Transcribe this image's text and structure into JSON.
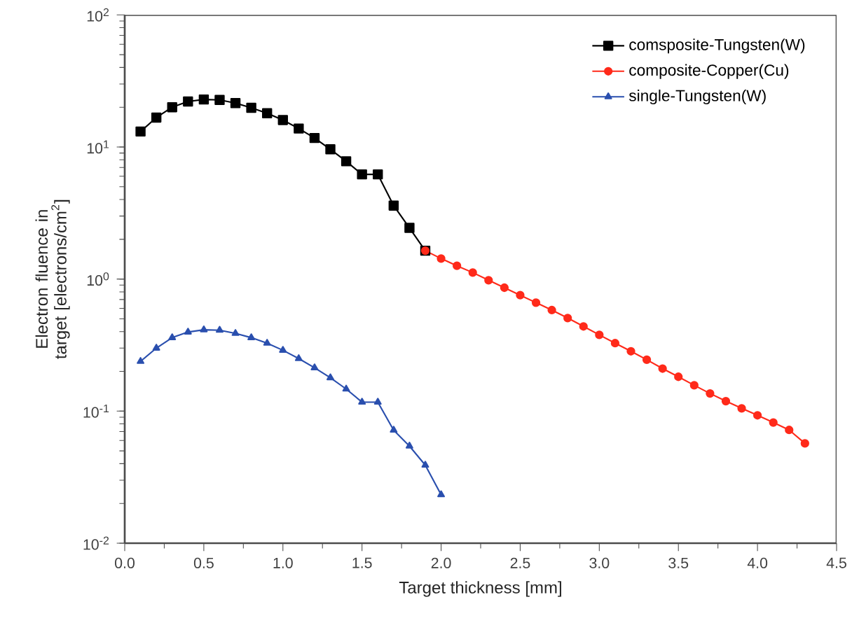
{
  "chart_data": {
    "type": "line",
    "xlabel": "Target thickness [mm]",
    "ylabel": "Electron fluence in target [electrons/cm$^{2}$]",
    "log": "y",
    "grid": false,
    "legend": "top right",
    "line_style": "solid",
    "xlim": [
      0,
      4.5
    ],
    "ylim": [
      0.01,
      100
    ],
    "xticks": [
      {
        "value": 0,
        "label": "0.0"
      },
      0.5,
      {
        "value": 1,
        "label": "1.0"
      },
      1.5,
      {
        "value": 2,
        "label": "2.0"
      },
      2.5,
      {
        "value": 3,
        "label": "3.0"
      },
      3.5,
      {
        "value": 4,
        "label": "4.0"
      },
      4.5
    ],
    "yticks": [
      {
        "value": 0.01,
        "label": "10$^{-2}$"
      },
      {
        "value": 0.1,
        "label": "10$^{-1}$"
      },
      {
        "value": 1,
        "label": "10$^{0}$"
      },
      {
        "value": 10,
        "label": "10$^{1}$"
      },
      {
        "value": 100,
        "label": "10$^{2}$"
      }
    ],
    "series": [
      {
        "name": "comsposite-Tungsten(W)",
        "color": "#000000",
        "marker": "square",
        "x": [
          0.1,
          0.2,
          0.3,
          0.4,
          0.5,
          0.6,
          0.7,
          0.8,
          0.9,
          1.0,
          1.1,
          1.2,
          1.3,
          1.4,
          1.5,
          1.6,
          1.7,
          1.8,
          1.9
        ],
        "values": [
          13.1,
          16.7,
          20,
          22.1,
          22.9,
          22.7,
          21.5,
          19.8,
          18,
          16,
          13.8,
          11.7,
          9.6,
          7.8,
          6.2,
          6.2,
          3.6,
          2.44,
          1.64
        ]
      },
      {
        "name": "composite-Copper(Cu)",
        "color": "#ff2a1a",
        "marker": "circle",
        "x": [
          1.9,
          2.0,
          2.1,
          2.2,
          2.3,
          2.4,
          2.5,
          2.6,
          2.7,
          2.8,
          2.9,
          3.0,
          3.1,
          3.2,
          3.3,
          3.4,
          3.5,
          3.6,
          3.7,
          3.8,
          3.9,
          4.0,
          4.1,
          4.2,
          4.3
        ],
        "values": [
          1.64,
          1.43,
          1.26,
          1.12,
          0.98,
          0.86,
          0.755,
          0.663,
          0.582,
          0.507,
          0.438,
          0.378,
          0.327,
          0.284,
          0.245,
          0.21,
          0.182,
          0.157,
          0.136,
          0.119,
          0.105,
          0.093,
          0.082,
          0.072,
          0.057
        ]
      },
      {
        "name": "single-Tungsten(W)",
        "color": "#2a4fae",
        "marker": "triangle",
        "x": [
          0.1,
          0.2,
          0.3,
          0.4,
          0.5,
          0.6,
          0.7,
          0.8,
          0.9,
          1.0,
          1.1,
          1.2,
          1.3,
          1.4,
          1.5,
          1.6,
          1.7,
          1.8,
          1.9,
          2.0
        ],
        "values": [
          0.238,
          0.3,
          0.36,
          0.397,
          0.413,
          0.41,
          0.388,
          0.36,
          0.327,
          0.289,
          0.25,
          0.213,
          0.179,
          0.147,
          0.117,
          0.117,
          0.0718,
          0.0544,
          0.039,
          0.0233
        ]
      }
    ]
  }
}
